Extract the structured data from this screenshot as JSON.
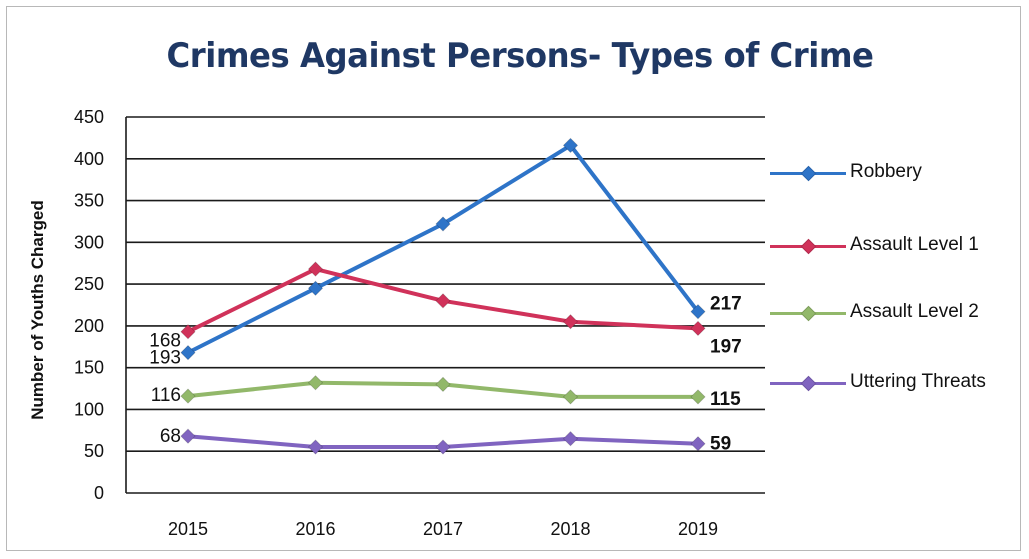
{
  "chart_data": {
    "type": "line",
    "title": "Crimes Against Persons- Types of Crime",
    "xlabel": "",
    "ylabel": "Number of Youths Charged",
    "categories": [
      "2015",
      "2016",
      "2017",
      "2018",
      "2019"
    ],
    "ylim": [
      0,
      450
    ],
    "yticks": [
      "0",
      "50",
      "100",
      "150",
      "200",
      "250",
      "300",
      "350",
      "400",
      "450"
    ],
    "grid": true,
    "legend_position": "right",
    "series": [
      {
        "name": "Robbery",
        "color": "#2e74c8",
        "values": [
          168,
          245,
          322,
          416,
          217
        ]
      },
      {
        "name": "Assault Level 1",
        "color": "#d0325a",
        "values": [
          193,
          268,
          230,
          205,
          197
        ]
      },
      {
        "name": "Assault Level 2",
        "color": "#92b86a",
        "values": [
          116,
          132,
          130,
          115,
          115
        ]
      },
      {
        "name": "Uttering Threats",
        "color": "#8064c0",
        "values": [
          68,
          55,
          55,
          65,
          59
        ]
      }
    ],
    "data_labels": [
      {
        "text": "193",
        "series": 1,
        "point": 0,
        "side": "left"
      },
      {
        "text": "168",
        "series": 0,
        "point": 0,
        "side": "left"
      },
      {
        "text": "116",
        "series": 2,
        "point": 0,
        "side": "left"
      },
      {
        "text": "68",
        "series": 3,
        "point": 0,
        "side": "left"
      },
      {
        "text": "217",
        "series": 0,
        "point": 4,
        "side": "right"
      },
      {
        "text": "197",
        "series": 1,
        "point": 4,
        "side": "right"
      },
      {
        "text": "115",
        "series": 2,
        "point": 4,
        "side": "right"
      },
      {
        "text": "59",
        "series": 3,
        "point": 4,
        "side": "right"
      }
    ]
  }
}
